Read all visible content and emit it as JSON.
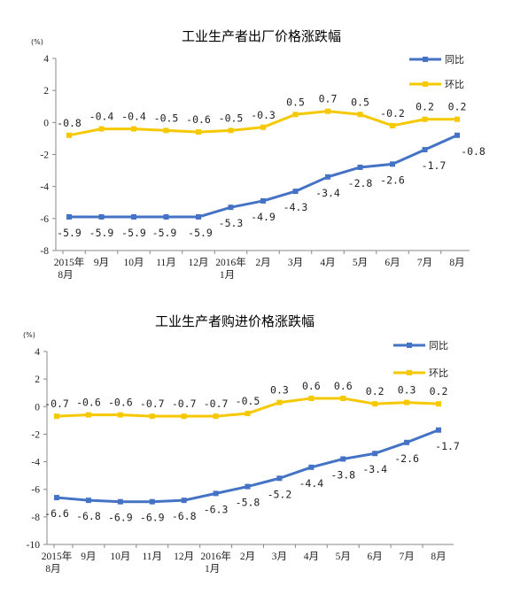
{
  "chart_data": [
    {
      "type": "line",
      "title": "工业生产者出厂价格涨跌幅",
      "unit": "(%)",
      "ylim": [
        -8,
        4
      ],
      "yticks": [
        "4",
        "2",
        "0",
        "-2",
        "-4",
        "-6",
        "-8"
      ],
      "categories": [
        "2015年|8月",
        "9月",
        "10月",
        "11月",
        "12月",
        "2016年|1月",
        "2月",
        "3月",
        "4月",
        "5月",
        "6月",
        "7月",
        "8月"
      ],
      "legend_position": "top-right",
      "series": [
        {
          "name": "同比",
          "color": "#4472C4",
          "values": [
            -5.9,
            -5.9,
            -5.9,
            -5.9,
            -5.9,
            -5.3,
            -4.9,
            -4.3,
            -3.4,
            -2.8,
            -2.6,
            -1.7,
            -0.8
          ],
          "labels": [
            "-5.9",
            "-5.9",
            "-5.9",
            "-5.9",
            "-5.9",
            "-5.3",
            "-4.9",
            "-4.3",
            "-3.4",
            "-2.8",
            "-2.6",
            "-1.7",
            "-0.8"
          ]
        },
        {
          "name": "环比",
          "color": "#F5C800",
          "values": [
            -0.8,
            -0.4,
            -0.4,
            -0.5,
            -0.6,
            -0.5,
            -0.3,
            0.5,
            0.7,
            0.5,
            -0.2,
            0.2,
            0.2
          ],
          "labels": [
            "-0.8",
            "-0.4",
            "-0.4",
            "-0.5",
            "-0.6",
            "-0.5",
            "-0.3",
            "0.5",
            "0.7",
            "0.5",
            "-0.2",
            "0.2",
            "0.2"
          ]
        }
      ]
    },
    {
      "type": "line",
      "title": "工业生产者购进价格涨跌幅",
      "unit": "(%)",
      "ylim": [
        -10,
        4
      ],
      "yticks": [
        "4",
        "2",
        "0",
        "-2",
        "-4",
        "-6",
        "-8",
        "-10"
      ],
      "categories": [
        "2015年|8月",
        "9月",
        "10月",
        "11月",
        "12月",
        "2016年|1月",
        "2月",
        "3月",
        "4月",
        "5月",
        "6月",
        "7月",
        "8月"
      ],
      "legend_position": "top-right",
      "series": [
        {
          "name": "同比",
          "color": "#4472C4",
          "values": [
            -6.6,
            -6.8,
            -6.9,
            -6.9,
            -6.8,
            -6.3,
            -5.8,
            -5.2,
            -4.4,
            -3.8,
            -3.4,
            -2.6,
            -1.7
          ],
          "labels": [
            "-6.6",
            "-6.8",
            "-6.9",
            "-6.9",
            "-6.8",
            "-6.3",
            "-5.8",
            "-5.2",
            "-4.4",
            "-3.8",
            "-3.4",
            "-2.6",
            "-1.7"
          ]
        },
        {
          "name": "环比",
          "color": "#F5C800",
          "values": [
            -0.7,
            -0.6,
            -0.6,
            -0.7,
            -0.7,
            -0.7,
            -0.5,
            0.3,
            0.6,
            0.6,
            0.2,
            0.3,
            0.2
          ],
          "labels": [
            "-0.7",
            "-0.6",
            "-0.6",
            "-0.7",
            "-0.7",
            "-0.7",
            "-0.5",
            "0.3",
            "0.6",
            "0.6",
            "0.2",
            "0.3",
            "0.2"
          ]
        }
      ]
    }
  ]
}
